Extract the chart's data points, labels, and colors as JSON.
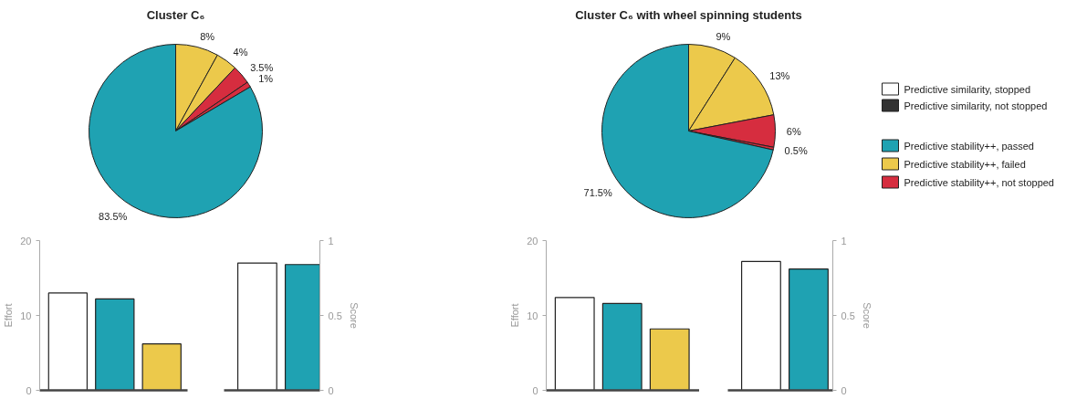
{
  "chart_data": [
    {
      "type": "pie",
      "title": "Cluster C₆",
      "categories": [
        null,
        null,
        null,
        null,
        null
      ],
      "values": [
        8,
        4,
        3.5,
        1,
        83.5
      ],
      "colors": [
        "#ecc94b",
        "#ecc94b",
        "#d62d3f",
        "#d62d3f",
        "#1fa2b2"
      ],
      "value_labels": [
        "8%",
        "4%",
        "3.5%",
        "1%",
        "83.5%"
      ]
    },
    {
      "type": "bar",
      "categories": [
        null,
        null,
        null
      ],
      "values": [
        13,
        12.2,
        6.2
      ],
      "colors": [
        "#ffffff",
        "#1fa2b2",
        "#ecc94b"
      ],
      "ylabel": "Effort",
      "ylim": [
        0,
        20
      ],
      "yticks": [
        0,
        10,
        20
      ],
      "tick_labels": "y",
      "grid": false
    },
    {
      "type": "bar",
      "categories": [
        null,
        null
      ],
      "series": [
        {
          "values": [
            0.85,
            0.84
          ],
          "axis": "y2"
        }
      ],
      "colors": [
        "#ffffff",
        "#1fa2b2"
      ],
      "y2label": "Score",
      "y2lim": [
        0,
        1
      ],
      "y2ticks": [
        0,
        0.5,
        1
      ],
      "tick_labels": "y",
      "grid": false
    },
    {
      "type": "pie",
      "title": "Cluster C₆ with wheel spinning students",
      "categories": [
        null,
        null,
        null,
        null,
        null
      ],
      "values": [
        9,
        13,
        6,
        0.5,
        71.5
      ],
      "colors": [
        "#ecc94b",
        "#ecc94b",
        "#d62d3f",
        "#d62d3f",
        "#1fa2b2"
      ],
      "value_labels": [
        "9%",
        "13%",
        "6%",
        "0.5%",
        "71.5%"
      ]
    },
    {
      "type": "bar",
      "categories": [
        null,
        null,
        null
      ],
      "values": [
        12.4,
        11.6,
        8.2
      ],
      "colors": [
        "#ffffff",
        "#1fa2b2",
        "#ecc94b"
      ],
      "ylabel": "Effort",
      "ylim": [
        0,
        20
      ],
      "yticks": [
        0,
        10,
        20
      ],
      "tick_labels": "y",
      "grid": false
    },
    {
      "type": "bar",
      "categories": [
        null,
        null
      ],
      "series": [
        {
          "values": [
            0.86,
            0.81
          ],
          "axis": "y2"
        }
      ],
      "colors": [
        "#ffffff",
        "#1fa2b2"
      ],
      "y2label": "Score",
      "y2lim": [
        0,
        1
      ],
      "y2ticks": [
        0,
        0.5,
        1
      ],
      "tick_labels": "y",
      "grid": false
    },
    {
      "type": "other",
      "series": [
        {
          "name": "Predictive similarity, stopped",
          "color": "#ffffff"
        },
        {
          "name": "Predictive similarity, not stopped",
          "color": "#333333"
        },
        {
          "name": "Predictive stability++, passed",
          "color": "#1fa2b2"
        },
        {
          "name": "Predictive stability++, failed",
          "color": "#ecc94b"
        },
        {
          "name": "Predictive stability++, not stopped",
          "color": "#d62d3f"
        }
      ]
    }
  ]
}
